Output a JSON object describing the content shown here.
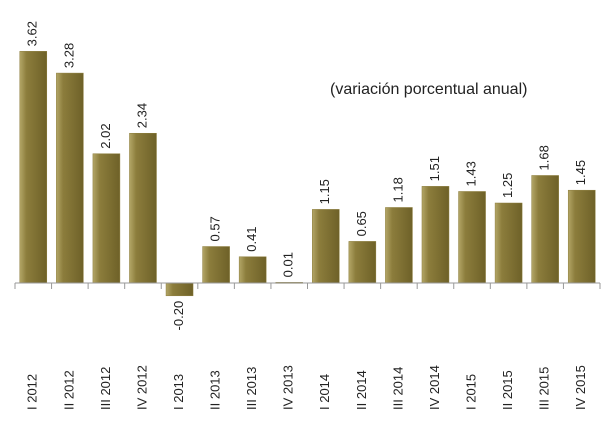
{
  "chart_data": {
    "type": "bar",
    "annotation": "(variación porcentual anual)",
    "categories": [
      "I 2012",
      "II 2012",
      "III 2012",
      "IV 2012",
      "I 2013",
      "II 2013",
      "III 2013",
      "IV 2013",
      "I 2014",
      "II 2014",
      "III 2014",
      "IV 2014",
      "I 2015",
      "II 2015",
      "III 2015",
      "IV 2015"
    ],
    "values": [
      3.62,
      3.28,
      2.02,
      2.34,
      -0.2,
      0.57,
      0.41,
      0.01,
      1.15,
      0.65,
      1.18,
      1.51,
      1.43,
      1.25,
      1.68,
      1.45
    ],
    "value_labels": [
      "3.62",
      "3.28",
      "2.02",
      "2.34",
      "-0.20",
      "0.57",
      "0.41",
      "0.01",
      "1.15",
      "0.65",
      "1.18",
      "1.51",
      "1.43",
      "1.25",
      "1.68",
      "1.45"
    ],
    "color": "#8c7d3c"
  }
}
